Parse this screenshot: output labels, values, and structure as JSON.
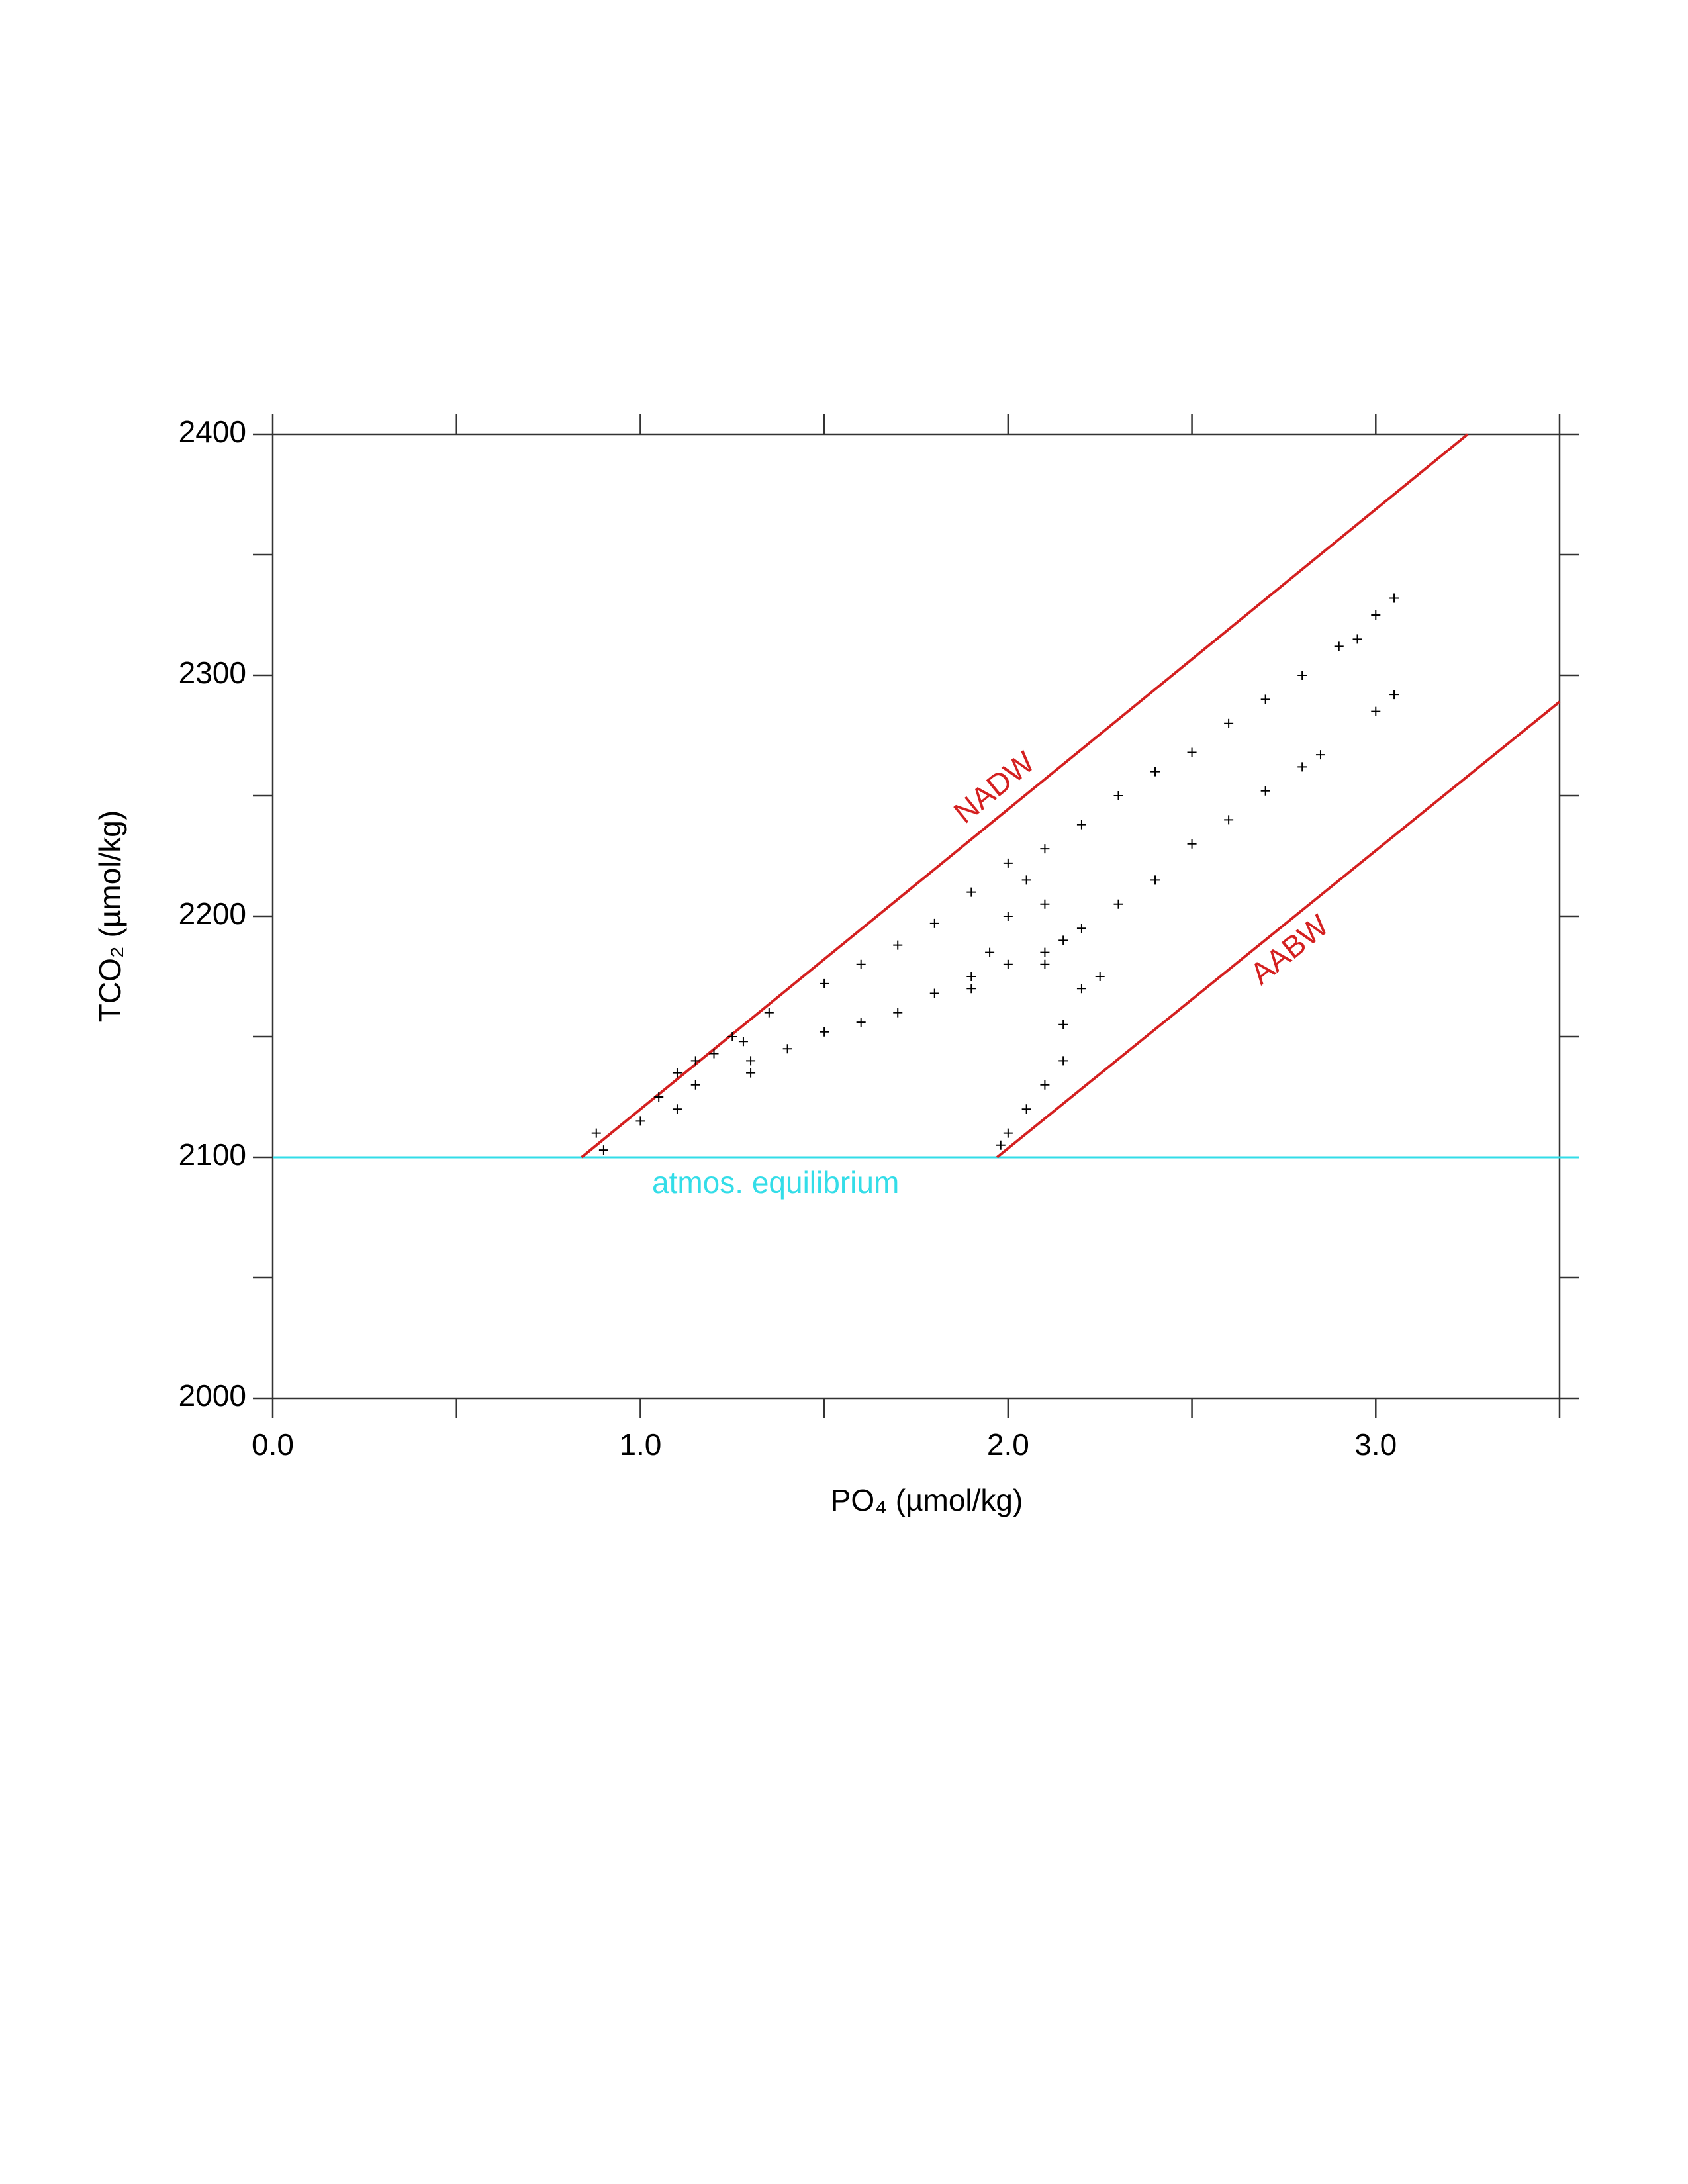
{
  "chart_data": {
    "type": "scatter",
    "x_label": "PO₄ (µmol/kg)",
    "y_label": "TCO₂ (µmol/kg)",
    "xlim": [
      0,
      3.5
    ],
    "ylim": [
      2000,
      2400
    ],
    "xticks": [
      {
        "value": 0,
        "label": "0.0"
      },
      {
        "value": 1,
        "label": "1.0"
      },
      {
        "value": 2,
        "label": "2.0"
      },
      {
        "value": 3,
        "label": "3.0"
      }
    ],
    "xminorticks": [
      0.5,
      1.5,
      2.5,
      3.5
    ],
    "yticks": [
      2000,
      2100,
      2200,
      2300,
      2400
    ],
    "yminorticks": [
      2050,
      2150,
      2250,
      2350
    ],
    "color": "#000000",
    "marker": "+",
    "x": [
      1.25,
      1.35,
      1.5,
      1.6,
      1.7,
      1.8,
      1.9,
      2.0,
      2.1,
      2.2,
      2.3,
      2.4,
      2.5,
      2.6,
      2.7,
      2.8,
      2.9,
      3.0,
      3.05,
      2.95,
      1.3,
      1.4,
      1.5,
      1.6,
      1.7,
      1.8,
      1.9,
      2.0,
      2.1,
      2.2,
      2.3,
      2.4,
      2.5,
      2.6,
      2.7,
      2.8,
      2.85,
      3.0,
      3.05,
      2.0,
      1.98,
      2.05,
      2.1,
      2.15,
      2.15,
      2.2,
      2.15,
      2.1,
      2.05,
      2.0,
      1.95,
      1.9,
      2.25,
      2.1,
      0.88,
      0.9,
      1.0,
      1.05,
      1.1,
      1.15,
      1.2,
      1.15,
      1.28,
      1.1,
      1.3
    ],
    "values": [
      2150,
      2160,
      2172,
      2180,
      2188,
      2197,
      2210,
      2222,
      2228,
      2238,
      2250,
      2260,
      2268,
      2280,
      2290,
      2300,
      2312,
      2325,
      2332,
      2315,
      2140,
      2145,
      2152,
      2156,
      2160,
      2168,
      2175,
      2180,
      2185,
      2195,
      2205,
      2215,
      2230,
      2240,
      2252,
      2262,
      2267,
      2285,
      2292,
      2110,
      2105,
      2120,
      2130,
      2140,
      2155,
      2170,
      2190,
      2205,
      2215,
      2200,
      2185,
      2170,
      2175,
      2180,
      2110,
      2103,
      2115,
      2125,
      2135,
      2130,
      2143,
      2140,
      2148,
      2120,
      2135
    ],
    "lines": [
      {
        "label": "NADW",
        "color": "#d42020",
        "x": [
          0.84,
          3.25
        ],
        "y": [
          2100,
          2400
        ]
      },
      {
        "label": "AABW",
        "color": "#d42020",
        "x": [
          1.97,
          3.5
        ],
        "y": [
          2100,
          2289
        ]
      }
    ],
    "hline": {
      "label": "atmos. equilibrium",
      "color": "#33dde8",
      "y": 2100
    }
  }
}
